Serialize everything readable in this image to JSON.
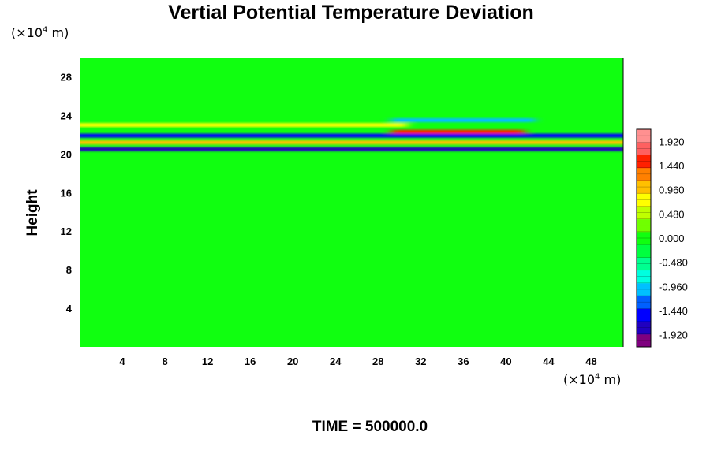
{
  "chart_data": {
    "type": "heatmap",
    "title": "Vertial Potential Temperature Deviation",
    "xlabel": "",
    "ylabel": "Height",
    "x_unit": "(×10",
    "x_unit_exp": "4",
    "x_unit_tail": " m)",
    "y_unit": "(×10",
    "y_unit_exp": "4",
    "y_unit_tail": " m)",
    "xlim": [
      0,
      51
    ],
    "ylim": [
      0,
      30
    ],
    "x_ticks": [
      "4",
      "8",
      "12",
      "16",
      "20",
      "24",
      "28",
      "32",
      "36",
      "40",
      "44",
      "48"
    ],
    "y_ticks": [
      "4",
      "8",
      "12",
      "16",
      "20",
      "24",
      "28"
    ],
    "colorbar": {
      "range": [
        -2.16,
        2.16
      ],
      "labels": [
        "1.920",
        "1.440",
        "0.960",
        "0.480",
        "0.000",
        "-0.480",
        "-0.960",
        "-1.440",
        "-1.920"
      ],
      "label_values": [
        1.92,
        1.44,
        0.96,
        0.48,
        0.0,
        -0.48,
        -0.96,
        -1.44,
        -1.92
      ],
      "palette": [
        "#7f007f",
        "#2000c0",
        "#0000ff",
        "#0060ff",
        "#00c0ff",
        "#00ffe0",
        "#00ff90",
        "#00ff40",
        "#10ff10",
        "#70ff00",
        "#c0ff00",
        "#ffff00",
        "#ffc000",
        "#ff8000",
        "#ff2000",
        "#ff6060",
        "#ff9090"
      ]
    },
    "bands": [
      {
        "y": 20.5,
        "amplitude": -1.9,
        "x_range": [
          0,
          51
        ]
      },
      {
        "y": 21.2,
        "amplitude": 0.9,
        "x_range": [
          0,
          51
        ]
      },
      {
        "y": 21.9,
        "amplitude": -1.5,
        "x_range": [
          0,
          51
        ]
      },
      {
        "y": 22.3,
        "amplitude": 1.6,
        "x_range": [
          30,
          41
        ]
      },
      {
        "y": 23.0,
        "amplitude": 0.7,
        "x_range": [
          0,
          30
        ]
      },
      {
        "y": 23.5,
        "amplitude": -1.0,
        "x_range": [
          30,
          42
        ]
      }
    ],
    "background_value": 0.0
  },
  "footer": {
    "time_label": "TIME = 500000.0"
  }
}
